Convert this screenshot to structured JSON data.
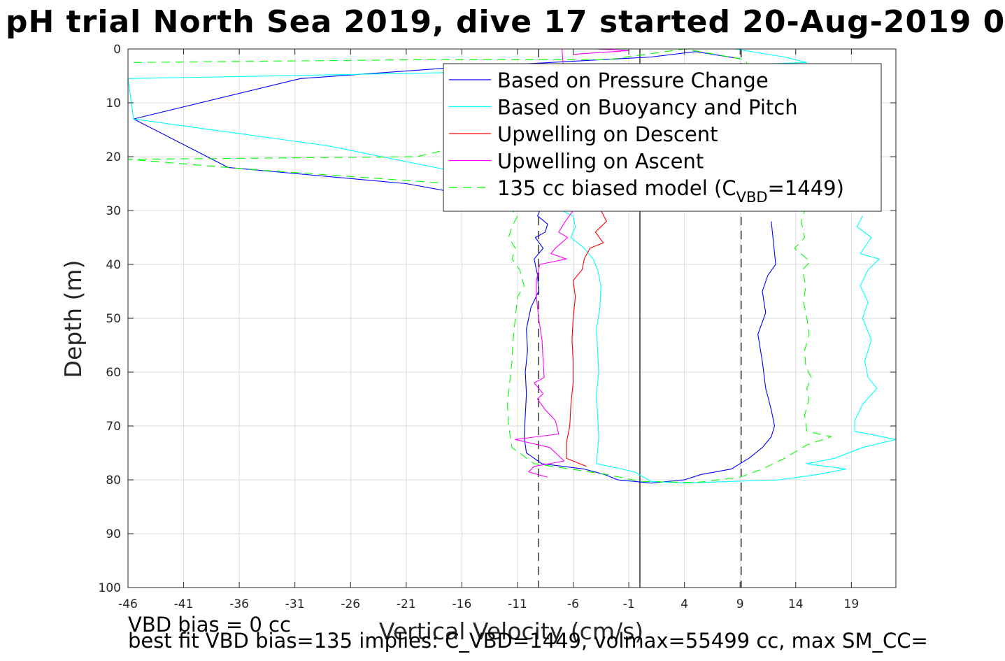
{
  "title": "pH trial North Sea 2019, dive 17 started 20-Aug-2019 0",
  "footer": {
    "line1": "VBD bias = 0 cc",
    "line2": "best fit VBD bias=135 implies: C_VBD=1449, volmax=55499 cc, max SM_CC="
  },
  "chart_data": {
    "type": "line",
    "xlabel": "Vertical Velocity (cm/s)",
    "ylabel": "Depth (m)",
    "xlim": [
      -46,
      23
    ],
    "ylim": [
      0,
      100
    ],
    "y_reversed": true,
    "grid": true,
    "legend_position": "top-right",
    "xticks": [
      -46,
      -41,
      -36,
      -31,
      -26,
      -21,
      -16,
      -11,
      -6,
      -1,
      4,
      9,
      14,
      19
    ],
    "yticks": [
      0,
      10,
      20,
      30,
      40,
      50,
      60,
      70,
      80,
      90,
      100
    ],
    "reference_lines": [
      {
        "x": 0,
        "style": "solid",
        "color": "#000000"
      },
      {
        "x": -9.1,
        "style": "dashed",
        "color": "#000000"
      },
      {
        "x": 9.1,
        "style": "dashed",
        "color": "#000000"
      }
    ],
    "legend": [
      {
        "text": "Based on Pressure Change",
        "color": "#0000ff",
        "dash": ""
      },
      {
        "text": "Based on Buoyancy and Pitch",
        "color": "#00ffff",
        "dash": ""
      },
      {
        "text": "Upwelling on Descent",
        "color": "#ff0000",
        "dash": ""
      },
      {
        "text": "Upwelling on Ascent",
        "color": "#ff00ff",
        "dash": ""
      },
      {
        "text_main": "135 cc biased model (C",
        "text_sub": "VBD",
        "text_tail": "=1449)",
        "color": "#00ff00",
        "dash": "12,8"
      }
    ],
    "series": [
      {
        "color": "#0000ff",
        "dash": "",
        "points": [
          [
            9,
            1.8
          ],
          [
            5,
            0.5
          ],
          [
            1,
            1.5
          ],
          [
            -17,
            3.5
          ],
          [
            -30.5,
            5.5
          ],
          [
            -45.5,
            13
          ],
          [
            -37,
            22
          ],
          [
            -21,
            25
          ],
          [
            -17,
            26.5
          ],
          [
            -10,
            28
          ],
          [
            -9,
            30
          ],
          [
            -9.2,
            31
          ],
          [
            -8.3,
            32.5
          ],
          [
            -8.5,
            34
          ],
          [
            -9.4,
            35
          ],
          [
            -8.7,
            37
          ],
          [
            -9.5,
            39
          ],
          [
            -9.2,
            42
          ],
          [
            -9.1,
            45
          ],
          [
            -9.8,
            48
          ],
          [
            -10.2,
            52
          ],
          [
            -10.1,
            56
          ],
          [
            -10.3,
            60
          ],
          [
            -10.2,
            64
          ],
          [
            -10.3,
            68
          ],
          [
            -10.4,
            72
          ],
          [
            -10.2,
            75
          ],
          [
            -8.8,
            77
          ],
          [
            -5,
            78
          ],
          [
            -3.2,
            79
          ],
          [
            -2,
            80
          ],
          [
            1,
            80.6
          ],
          [
            4,
            80
          ],
          [
            5.5,
            79
          ],
          [
            8.2,
            78
          ],
          [
            9.8,
            76
          ],
          [
            11,
            74
          ],
          [
            11.8,
            72
          ],
          [
            12.1,
            70
          ],
          [
            11.8,
            67
          ],
          [
            11.3,
            63
          ],
          [
            11,
            58
          ],
          [
            10.6,
            53
          ],
          [
            11.3,
            49
          ],
          [
            11,
            45
          ],
          [
            11.5,
            42
          ],
          [
            12.2,
            40
          ],
          [
            12,
            36
          ],
          [
            11.8,
            32
          ]
        ]
      },
      {
        "color": "#00ffff",
        "dash": "",
        "points": [
          [
            8.5,
            0
          ],
          [
            13,
            1.5
          ],
          [
            15,
            2.5
          ],
          [
            1,
            3.5
          ],
          [
            -20,
            4.5
          ],
          [
            -46,
            5.5
          ],
          [
            -45.5,
            13
          ],
          [
            -28,
            18
          ],
          [
            -16,
            23
          ],
          [
            -11,
            28
          ],
          [
            -7,
            30
          ],
          [
            -6,
            31
          ],
          [
            -5.8,
            33
          ],
          [
            -6.2,
            35
          ],
          [
            -5,
            37
          ],
          [
            -4.2,
            39
          ],
          [
            -3.8,
            41
          ],
          [
            -3.5,
            44
          ],
          [
            -3.6,
            48
          ],
          [
            -3.9,
            52
          ],
          [
            -3.8,
            56
          ],
          [
            -3.7,
            60
          ],
          [
            -3.9,
            64
          ],
          [
            -3.8,
            68
          ],
          [
            -3.7,
            72
          ],
          [
            -3.9,
            77
          ],
          [
            -0.5,
            78.5
          ],
          [
            1,
            80.3
          ],
          [
            4,
            80.6
          ],
          [
            12.5,
            80
          ],
          [
            16,
            79
          ],
          [
            18.5,
            78
          ],
          [
            15,
            77
          ],
          [
            17.5,
            76
          ],
          [
            20,
            74
          ],
          [
            23,
            72.5
          ],
          [
            19.3,
            71
          ],
          [
            19.3,
            69
          ],
          [
            20,
            66
          ],
          [
            21.3,
            63
          ],
          [
            20.5,
            61
          ],
          [
            20.2,
            58
          ],
          [
            20.8,
            54
          ],
          [
            20,
            50
          ],
          [
            20.5,
            47
          ],
          [
            19.8,
            44
          ],
          [
            20.5,
            41
          ],
          [
            21.5,
            39
          ],
          [
            19.8,
            38
          ],
          [
            20.8,
            35
          ],
          [
            19.5,
            33
          ],
          [
            20,
            31
          ]
        ]
      },
      {
        "color": "#ff0000",
        "dash": "",
        "points": [
          [
            -3.5,
            30
          ],
          [
            -3,
            32
          ],
          [
            -4,
            34
          ],
          [
            -3.3,
            36
          ],
          [
            -4.5,
            37
          ],
          [
            -5,
            39
          ],
          [
            -5.2,
            41
          ],
          [
            -6,
            43
          ],
          [
            -5.8,
            46
          ],
          [
            -6,
            50
          ],
          [
            -6.1,
            54
          ],
          [
            -6,
            58
          ],
          [
            -6,
            62
          ],
          [
            -6.2,
            66
          ],
          [
            -6.3,
            70
          ],
          [
            -6.6,
            73
          ],
          [
            -6.6,
            76
          ],
          [
            -4.8,
            77.5
          ]
        ]
      },
      {
        "color": "#ff00ff",
        "dash": "",
        "points": [
          [
            -6,
            1
          ],
          [
            -1,
            0.3
          ],
          [
            -4,
            0
          ],
          [
            -7,
            0
          ],
          [
            -6,
            30
          ],
          [
            -6.7,
            32
          ],
          [
            -7.3,
            34
          ],
          [
            -6.5,
            35
          ],
          [
            -7.6,
            37
          ],
          [
            -8,
            38
          ],
          [
            -6.6,
            39
          ],
          [
            -9,
            40
          ],
          [
            -9.3,
            43
          ],
          [
            -9.3,
            46
          ],
          [
            -9.1,
            50
          ],
          [
            -8.8,
            54
          ],
          [
            -8.7,
            58
          ],
          [
            -8.6,
            61
          ],
          [
            -9.5,
            62
          ],
          [
            -8.7,
            64
          ],
          [
            -9.2,
            65
          ],
          [
            -8.5,
            67
          ],
          [
            -7.6,
            69
          ],
          [
            -7.3,
            71.5
          ],
          [
            -11.2,
            72.5
          ],
          [
            -8.1,
            74
          ],
          [
            -6.8,
            76.5
          ],
          [
            -9.5,
            77.5
          ],
          [
            -10,
            78.5
          ],
          [
            -9.2,
            79
          ],
          [
            -8.3,
            79.5
          ]
        ]
      },
      {
        "color": "#00ff00",
        "dash": "12,8",
        "points": [
          [
            -45.5,
            2.5
          ],
          [
            -20,
            2
          ],
          [
            -3,
            2
          ],
          [
            4,
            0
          ],
          [
            9.5,
            2
          ],
          [
            10,
            5
          ],
          [
            -20,
            20
          ],
          [
            -46,
            20.5
          ],
          [
            -34,
            22.5
          ],
          [
            -17,
            25
          ],
          [
            -13,
            27
          ],
          [
            -12,
            29
          ],
          [
            -11,
            31
          ],
          [
            -11.5,
            33
          ],
          [
            -11.8,
            35
          ],
          [
            -11.2,
            37
          ],
          [
            -11.5,
            39
          ],
          [
            -10.8,
            41
          ],
          [
            -10.4,
            44
          ],
          [
            -11,
            46
          ],
          [
            -11.2,
            50
          ],
          [
            -11.4,
            54
          ],
          [
            -11.5,
            58
          ],
          [
            -11.7,
            62
          ],
          [
            -11.9,
            66
          ],
          [
            -11.8,
            70
          ],
          [
            -11.5,
            74
          ],
          [
            -9.5,
            77
          ],
          [
            -3,
            79
          ],
          [
            0,
            80.3
          ],
          [
            5,
            80.5
          ],
          [
            9,
            79.5
          ],
          [
            11,
            78
          ],
          [
            13,
            76
          ],
          [
            15,
            73.5
          ],
          [
            17.2,
            72
          ],
          [
            15,
            71
          ],
          [
            14.8,
            68
          ],
          [
            15.2,
            65
          ],
          [
            15,
            63
          ],
          [
            15.4,
            61
          ],
          [
            14.9,
            59
          ],
          [
            14.8,
            56
          ],
          [
            15.2,
            53
          ],
          [
            15,
            50
          ],
          [
            14.7,
            47
          ],
          [
            14.9,
            44
          ],
          [
            14.6,
            41
          ],
          [
            15.3,
            39.5
          ],
          [
            13.9,
            37
          ],
          [
            14.8,
            35
          ],
          [
            14.5,
            32
          ],
          [
            14.8,
            30
          ]
        ]
      }
    ]
  }
}
